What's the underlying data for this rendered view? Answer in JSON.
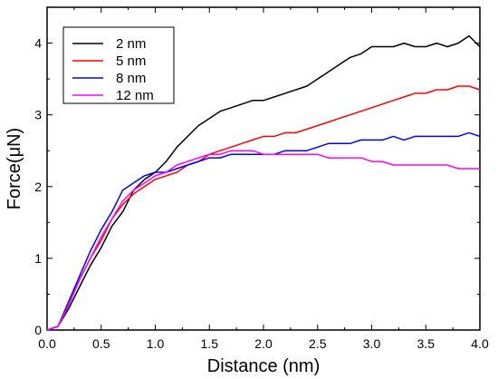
{
  "chart_data": {
    "type": "line",
    "title": "",
    "xlabel": "Distance (nm)",
    "ylabel": "Force(μN)",
    "xlim": [
      0.0,
      4.0
    ],
    "ylim": [
      0,
      4.5
    ],
    "x_ticks": [
      "0.0",
      "0.5",
      "1.0",
      "1.5",
      "2.0",
      "2.5",
      "3.0",
      "3.5",
      "4.0"
    ],
    "y_ticks": [
      "0",
      "1",
      "2",
      "3",
      "4"
    ],
    "grid": false,
    "legend_position": "top-left",
    "series": [
      {
        "name": "2 nm",
        "color": "#000000",
        "points": [
          [
            0.0,
            0.0
          ],
          [
            0.1,
            0.05
          ],
          [
            0.2,
            0.3
          ],
          [
            0.3,
            0.6
          ],
          [
            0.4,
            0.9
          ],
          [
            0.5,
            1.15
          ],
          [
            0.6,
            1.45
          ],
          [
            0.7,
            1.65
          ],
          [
            0.8,
            1.95
          ],
          [
            0.9,
            2.1
          ],
          [
            1.0,
            2.2
          ],
          [
            1.1,
            2.35
          ],
          [
            1.2,
            2.55
          ],
          [
            1.3,
            2.7
          ],
          [
            1.4,
            2.85
          ],
          [
            1.5,
            2.95
          ],
          [
            1.6,
            3.05
          ],
          [
            1.7,
            3.1
          ],
          [
            1.8,
            3.15
          ],
          [
            1.9,
            3.2
          ],
          [
            2.0,
            3.2
          ],
          [
            2.1,
            3.25
          ],
          [
            2.2,
            3.3
          ],
          [
            2.3,
            3.35
          ],
          [
            2.4,
            3.4
          ],
          [
            2.5,
            3.5
          ],
          [
            2.6,
            3.6
          ],
          [
            2.7,
            3.7
          ],
          [
            2.8,
            3.8
          ],
          [
            2.9,
            3.85
          ],
          [
            3.0,
            3.95
          ],
          [
            3.1,
            3.95
          ],
          [
            3.2,
            3.95
          ],
          [
            3.3,
            4.0
          ],
          [
            3.4,
            3.95
          ],
          [
            3.5,
            3.95
          ],
          [
            3.6,
            4.0
          ],
          [
            3.7,
            3.95
          ],
          [
            3.8,
            4.0
          ],
          [
            3.9,
            4.1
          ],
          [
            4.0,
            3.95
          ]
        ]
      },
      {
        "name": "5 nm",
        "color": "#ff0000",
        "points": [
          [
            0.0,
            0.0
          ],
          [
            0.1,
            0.05
          ],
          [
            0.2,
            0.35
          ],
          [
            0.3,
            0.7
          ],
          [
            0.4,
            1.0
          ],
          [
            0.5,
            1.25
          ],
          [
            0.6,
            1.55
          ],
          [
            0.7,
            1.75
          ],
          [
            0.8,
            1.9
          ],
          [
            0.9,
            2.0
          ],
          [
            1.0,
            2.1
          ],
          [
            1.1,
            2.15
          ],
          [
            1.2,
            2.2
          ],
          [
            1.3,
            2.3
          ],
          [
            1.4,
            2.35
          ],
          [
            1.5,
            2.45
          ],
          [
            1.6,
            2.5
          ],
          [
            1.7,
            2.55
          ],
          [
            1.8,
            2.6
          ],
          [
            1.9,
            2.65
          ],
          [
            2.0,
            2.7
          ],
          [
            2.1,
            2.7
          ],
          [
            2.2,
            2.75
          ],
          [
            2.3,
            2.75
          ],
          [
            2.4,
            2.8
          ],
          [
            2.5,
            2.85
          ],
          [
            2.6,
            2.9
          ],
          [
            2.7,
            2.95
          ],
          [
            2.8,
            3.0
          ],
          [
            2.9,
            3.05
          ],
          [
            3.0,
            3.1
          ],
          [
            3.1,
            3.15
          ],
          [
            3.2,
            3.2
          ],
          [
            3.3,
            3.25
          ],
          [
            3.4,
            3.3
          ],
          [
            3.5,
            3.3
          ],
          [
            3.6,
            3.35
          ],
          [
            3.7,
            3.35
          ],
          [
            3.8,
            3.4
          ],
          [
            3.9,
            3.4
          ],
          [
            4.0,
            3.35
          ]
        ]
      },
      {
        "name": "8 nm",
        "color": "#0000ff",
        "points": [
          [
            0.0,
            0.0
          ],
          [
            0.1,
            0.05
          ],
          [
            0.2,
            0.4
          ],
          [
            0.3,
            0.75
          ],
          [
            0.4,
            1.1
          ],
          [
            0.5,
            1.4
          ],
          [
            0.6,
            1.65
          ],
          [
            0.7,
            1.95
          ],
          [
            0.8,
            2.05
          ],
          [
            0.9,
            2.15
          ],
          [
            1.0,
            2.2
          ],
          [
            1.1,
            2.2
          ],
          [
            1.2,
            2.25
          ],
          [
            1.3,
            2.3
          ],
          [
            1.4,
            2.35
          ],
          [
            1.5,
            2.4
          ],
          [
            1.6,
            2.4
          ],
          [
            1.7,
            2.45
          ],
          [
            1.8,
            2.45
          ],
          [
            1.9,
            2.45
          ],
          [
            2.0,
            2.45
          ],
          [
            2.1,
            2.45
          ],
          [
            2.2,
            2.5
          ],
          [
            2.3,
            2.5
          ],
          [
            2.4,
            2.5
          ],
          [
            2.5,
            2.55
          ],
          [
            2.6,
            2.6
          ],
          [
            2.7,
            2.6
          ],
          [
            2.8,
            2.6
          ],
          [
            2.9,
            2.65
          ],
          [
            3.0,
            2.65
          ],
          [
            3.1,
            2.65
          ],
          [
            3.2,
            2.7
          ],
          [
            3.3,
            2.65
          ],
          [
            3.4,
            2.7
          ],
          [
            3.5,
            2.7
          ],
          [
            3.6,
            2.7
          ],
          [
            3.7,
            2.7
          ],
          [
            3.8,
            2.7
          ],
          [
            3.9,
            2.75
          ],
          [
            4.0,
            2.7
          ]
        ]
      },
      {
        "name": "12 nm",
        "color": "#ff00ff",
        "points": [
          [
            0.0,
            0.0
          ],
          [
            0.1,
            0.05
          ],
          [
            0.2,
            0.35
          ],
          [
            0.3,
            0.7
          ],
          [
            0.4,
            1.0
          ],
          [
            0.5,
            1.3
          ],
          [
            0.6,
            1.55
          ],
          [
            0.7,
            1.8
          ],
          [
            0.8,
            1.95
          ],
          [
            0.9,
            2.05
          ],
          [
            1.0,
            2.15
          ],
          [
            1.1,
            2.2
          ],
          [
            1.2,
            2.3
          ],
          [
            1.3,
            2.35
          ],
          [
            1.4,
            2.4
          ],
          [
            1.5,
            2.45
          ],
          [
            1.6,
            2.45
          ],
          [
            1.7,
            2.5
          ],
          [
            1.8,
            2.5
          ],
          [
            1.9,
            2.5
          ],
          [
            2.0,
            2.45
          ],
          [
            2.1,
            2.45
          ],
          [
            2.2,
            2.45
          ],
          [
            2.3,
            2.45
          ],
          [
            2.4,
            2.45
          ],
          [
            2.5,
            2.45
          ],
          [
            2.6,
            2.4
          ],
          [
            2.7,
            2.4
          ],
          [
            2.8,
            2.4
          ],
          [
            2.9,
            2.4
          ],
          [
            3.0,
            2.35
          ],
          [
            3.1,
            2.35
          ],
          [
            3.2,
            2.3
          ],
          [
            3.3,
            2.3
          ],
          [
            3.4,
            2.3
          ],
          [
            3.5,
            2.3
          ],
          [
            3.6,
            2.3
          ],
          [
            3.7,
            2.3
          ],
          [
            3.8,
            2.25
          ],
          [
            3.9,
            2.25
          ],
          [
            4.0,
            2.25
          ]
        ]
      }
    ]
  }
}
